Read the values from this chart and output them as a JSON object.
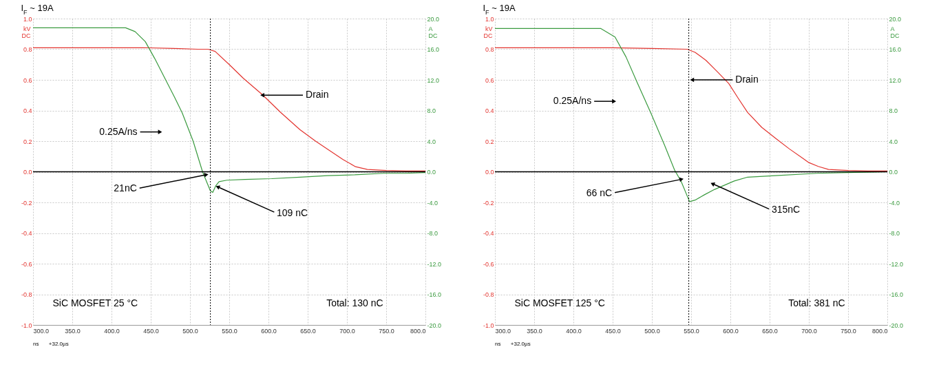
{
  "chart_data": [
    {
      "type": "line",
      "title": "I$_{F}$ ~ 19A",
      "xlabel": "ns",
      "ylabel": "kV DC",
      "y2label": "A DC",
      "xlim": [
        300,
        800
      ],
      "xticks": [
        {
          "value": 300,
          "label": "300.0"
        },
        {
          "value": 350,
          "label": "350.0"
        },
        {
          "value": 400,
          "label": "400.0"
        },
        {
          "value": 450,
          "label": "450.0"
        },
        {
          "value": 500,
          "label": "500.0"
        },
        {
          "value": 550,
          "label": "550.0"
        },
        {
          "value": 600,
          "label": "600.0"
        },
        {
          "value": 650,
          "label": "650.0"
        },
        {
          "value": 700,
          "label": "700.0"
        },
        {
          "value": 750,
          "label": "750.0"
        },
        {
          "value": 800,
          "label": "800.0"
        }
      ],
      "ylim": [
        -1,
        1
      ],
      "yticks": [
        {
          "value": -1,
          "label": "-1.0"
        },
        -0.8,
        -0.6,
        -0.4,
        -0.2,
        {
          "value": 0,
          "label": "0.0"
        },
        0.2,
        0.4,
        0.6,
        0.8,
        {
          "value": 1,
          "label": "1.0"
        }
      ],
      "y2lim": [
        -20,
        20
      ],
      "y2ticks": [
        {
          "value": -20,
          "label": "-20.0"
        },
        {
          "value": -16,
          "label": "-16.0"
        },
        {
          "value": -12,
          "label": "-12.0"
        },
        {
          "value": -8,
          "label": "-8.0"
        },
        {
          "value": -4,
          "label": "-4.0"
        },
        {
          "value": 0,
          "label": "0.0"
        },
        {
          "value": 4,
          "label": "4.0"
        },
        {
          "value": 8,
          "label": "8.0"
        },
        {
          "value": 12,
          "label": "12.0"
        },
        {
          "value": 16,
          "label": "16.0"
        },
        {
          "value": 20,
          "label": "20.0"
        }
      ],
      "grid": true,
      "legend": false,
      "series": [
        {
          "color": "#e3342f",
          "axis": "y",
          "x": [
            300,
            350,
            400,
            440,
            480,
            510,
            523,
            532,
            550,
            568,
            593,
            615,
            640,
            660,
            676,
            695,
            711,
            726,
            750,
            775,
            800
          ],
          "values": [
            0.81,
            0.81,
            0.81,
            0.81,
            0.805,
            0.8,
            0.8,
            0.786,
            0.7,
            0.61,
            0.5,
            0.39,
            0.275,
            0.2,
            0.145,
            0.08,
            0.033,
            0.015,
            0.008,
            0.005,
            0.005
          ]
        },
        {
          "color": "#3a9a3f",
          "axis": "y2",
          "x": [
            300,
            350,
            400,
            418,
            430,
            443,
            455,
            468,
            480,
            490,
            504,
            516,
            522,
            526,
            529,
            533,
            537,
            547,
            570,
            604,
            640,
            675,
            710,
            747,
            775,
            800
          ],
          "values": [
            18.8,
            18.8,
            18.8,
            18.8,
            18.3,
            17,
            14.8,
            12.2,
            9.8,
            7.7,
            4,
            0,
            -1.5,
            -2.5,
            -2.7,
            -1.8,
            -1.3,
            -1.1,
            -1,
            -0.9,
            -0.7,
            -0.5,
            -0.4,
            -0.2,
            -0.2,
            -0.1
          ]
        }
      ],
      "ref_lines": [
        {
          "axis": "y",
          "value": 0,
          "color": "#000000"
        },
        {
          "axis": "x",
          "value": 526,
          "color": "#000000",
          "line_style": "dotted"
        }
      ],
      "annotations": [
        {
          "text": "0.25A/ns",
          "x": 461,
          "y": 0.26
        },
        {
          "text": "Drain",
          "x": 593,
          "y": 0.5
        },
        {
          "text": "21nC",
          "x": 520,
          "y": -0.02
        },
        {
          "text": "109 nC",
          "x": 536,
          "y": -0.1
        },
        "SiC MOSFET 25 °C",
        "Total: 130 nC",
        "+32.0µs"
      ]
    },
    {
      "type": "line",
      "title": "I$_{F}$ ~ 19A",
      "xlabel": "ns",
      "ylabel": "kV DC",
      "y2label": "A DC",
      "xlim": [
        300,
        800
      ],
      "xticks": [
        {
          "value": 300,
          "label": "300.0"
        },
        {
          "value": 350,
          "label": "350.0"
        },
        {
          "value": 400,
          "label": "400.0"
        },
        {
          "value": 450,
          "label": "450.0"
        },
        {
          "value": 500,
          "label": "500.0"
        },
        {
          "value": 550,
          "label": "550.0"
        },
        {
          "value": 600,
          "label": "600.0"
        },
        {
          "value": 650,
          "label": "650.0"
        },
        {
          "value": 700,
          "label": "700.0"
        },
        {
          "value": 750,
          "label": "750.0"
        },
        {
          "value": 800,
          "label": "800.0"
        }
      ],
      "ylim": [
        -1,
        1
      ],
      "yticks": [
        {
          "value": -1,
          "label": "-1.0"
        },
        -0.8,
        -0.6,
        -0.4,
        -0.2,
        {
          "value": 0,
          "label": "0.0"
        },
        0.2,
        0.4,
        0.6,
        0.8,
        {
          "value": 1,
          "label": "1.0"
        }
      ],
      "y2lim": [
        -20,
        20
      ],
      "y2ticks": [
        {
          "value": -20,
          "label": "-20.0"
        },
        {
          "value": -16,
          "label": "-16.0"
        },
        {
          "value": -12,
          "label": "-12.0"
        },
        {
          "value": -8,
          "label": "-8.0"
        },
        {
          "value": -4,
          "label": "-4.0"
        },
        {
          "value": 0,
          "label": "0.0"
        },
        {
          "value": 4,
          "label": "4.0"
        },
        {
          "value": 8,
          "label": "8.0"
        },
        {
          "value": 12,
          "label": "12.0"
        },
        {
          "value": 16,
          "label": "16.0"
        },
        {
          "value": 20,
          "label": "20.0"
        }
      ],
      "grid": true,
      "legend": false,
      "series": [
        {
          "color": "#e3342f",
          "axis": "y",
          "x": [
            300,
            350,
            400,
            450,
            500,
            545,
            555,
            569,
            584,
            598,
            610,
            622,
            640,
            658,
            675,
            693,
            700,
            712,
            725,
            750,
            775,
            800
          ],
          "values": [
            0.81,
            0.81,
            0.81,
            0.81,
            0.805,
            0.8,
            0.78,
            0.727,
            0.65,
            0.576,
            0.48,
            0.387,
            0.29,
            0.217,
            0.15,
            0.085,
            0.06,
            0.035,
            0.015,
            0.008,
            0.005,
            0.005
          ]
        },
        {
          "color": "#3a9a3f",
          "axis": "y2",
          "x": [
            300,
            350,
            400,
            435,
            453,
            467,
            481,
            499,
            516,
            529,
            537,
            548,
            555,
            567,
            580,
            605,
            622,
            657,
            710,
            750,
            800
          ],
          "values": [
            18.7,
            18.7,
            18.7,
            18.7,
            17.6,
            15,
            11.7,
            7.6,
            3.5,
            0.2,
            -1.2,
            -3.9,
            -3.7,
            -3,
            -2.3,
            -1.2,
            -0.7,
            -0.5,
            -0.2,
            -0.1,
            0
          ]
        }
      ],
      "ref_lines": [
        {
          "axis": "y",
          "value": 0,
          "color": "#000000"
        },
        {
          "axis": "x",
          "value": 547,
          "color": "#000000",
          "line_style": "dotted"
        }
      ],
      "annotations": [
        {
          "text": "0.25A/ns",
          "x": 451,
          "y": 0.46
        },
        {
          "text": "Drain",
          "x": 552,
          "y": 0.6
        },
        {
          "text": "66 nC",
          "x": 537,
          "y": -0.05
        },
        {
          "text": "315nC",
          "x": 578,
          "y": -0.08
        },
        "SiC MOSFET 125 °C",
        "Total: 381 nC",
        "+32.0µs"
      ]
    }
  ]
}
